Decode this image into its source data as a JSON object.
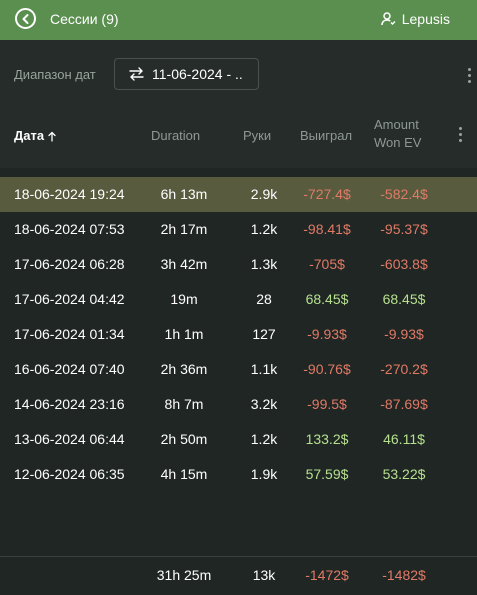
{
  "header": {
    "title": "Сессии (9)",
    "user_name": "Lepusis"
  },
  "filter": {
    "date_range_label": "Диапазон дат",
    "date_range_value": "11-06-2024 - .."
  },
  "table": {
    "columns": {
      "date": "Дата",
      "duration": "Duration",
      "hands": "Руки",
      "won": "Выиграл",
      "ev_line1": "Amount",
      "ev_line2": "Won EV"
    },
    "sort": "ascending",
    "rows": [
      {
        "date": "18-06-2024 19:24",
        "duration": "6h 13m",
        "hands": "2.9k",
        "won": "-727.4$",
        "ev": "-582.4$",
        "selected": true
      },
      {
        "date": "18-06-2024 07:53",
        "duration": "2h 17m",
        "hands": "1.2k",
        "won": "-98.41$",
        "ev": "-95.37$"
      },
      {
        "date": "17-06-2024 06:28",
        "duration": "3h 42m",
        "hands": "1.3k",
        "won": "-705$",
        "ev": "-603.8$"
      },
      {
        "date": "17-06-2024 04:42",
        "duration": "19m",
        "hands": "28",
        "won": "68.45$",
        "ev": "68.45$"
      },
      {
        "date": "17-06-2024 01:34",
        "duration": "1h 1m",
        "hands": "127",
        "won": "-9.93$",
        "ev": "-9.93$"
      },
      {
        "date": "16-06-2024 07:40",
        "duration": "2h 36m",
        "hands": "1.1k",
        "won": "-90.76$",
        "ev": "-270.2$"
      },
      {
        "date": "14-06-2024 23:16",
        "duration": "8h 7m",
        "hands": "3.2k",
        "won": "-99.5$",
        "ev": "-87.69$"
      },
      {
        "date": "13-06-2024 06:44",
        "duration": "2h 50m",
        "hands": "1.2k",
        "won": "133.2$",
        "ev": "46.11$"
      },
      {
        "date": "12-06-2024 06:35",
        "duration": "4h 15m",
        "hands": "1.9k",
        "won": "57.59$",
        "ev": "53.22$"
      }
    ],
    "totals": {
      "duration": "31h 25m",
      "hands": "13k",
      "won": "-1472$",
      "ev": "-1482$"
    }
  },
  "colors": {
    "header_bg": "#5b8f50",
    "negative": "#e07a66",
    "positive": "#b6e08e",
    "selected_row": "#585b3e"
  },
  "icons": {
    "back": "back-arrow-circle-icon",
    "user": "user-icon",
    "swap": "swap-arrows-icon",
    "sort": "sort-up-arrow-icon",
    "more": "kebab-menu-icon"
  }
}
